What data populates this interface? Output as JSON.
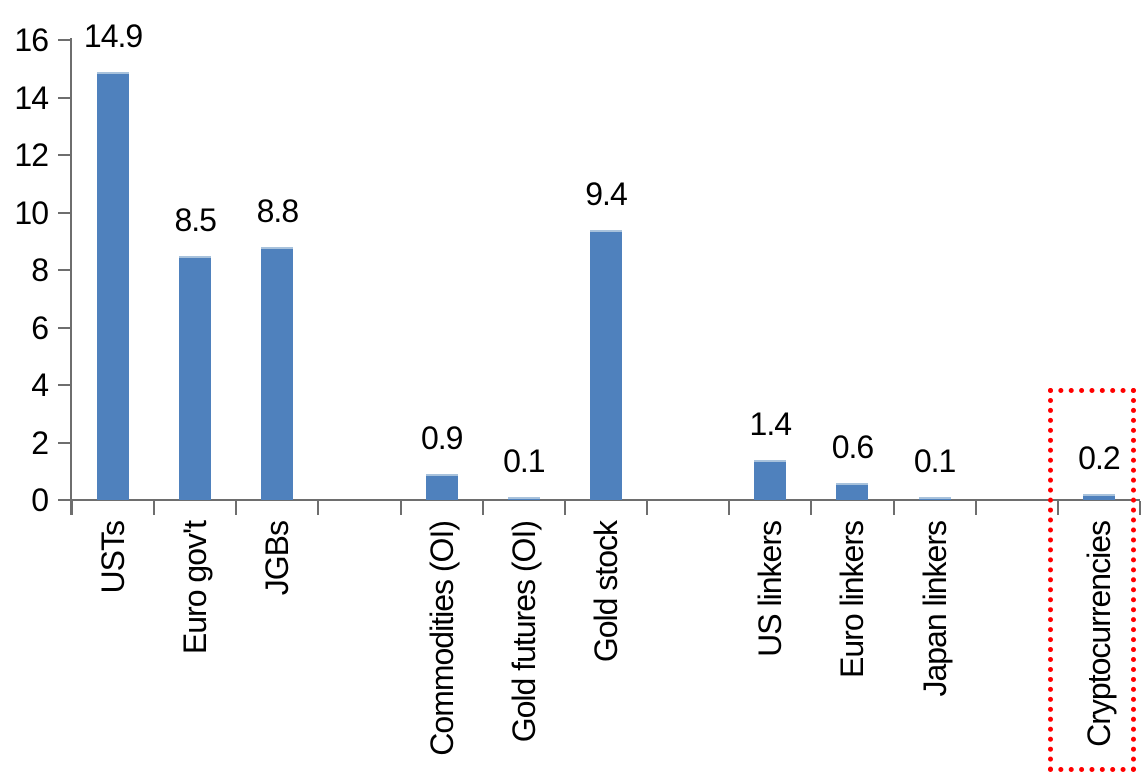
{
  "chart_data": {
    "type": "bar",
    "title": "",
    "categories": [
      "USTs",
      "Euro gov't",
      "JGBs",
      "Commodities (OI)",
      "Gold futures (OI)",
      "Gold stock",
      "US linkers",
      "Euro linkers",
      "Japan linkers",
      "Cryptocurrencies"
    ],
    "values": [
      14.9,
      8.5,
      8.8,
      0.9,
      0.1,
      9.4,
      1.4,
      0.6,
      0.1,
      0.2
    ],
    "value_labels": [
      "14.9",
      "8.5",
      "8.8",
      "0.9",
      "0.1",
      "9.4",
      "1.4",
      "0.6",
      "0.1",
      "0.2"
    ],
    "slot_indices": [
      0,
      1,
      2,
      4,
      5,
      6,
      8,
      9,
      10,
      12
    ],
    "total_slots": 13,
    "xlabel": "",
    "ylabel": "",
    "ylim": [
      0,
      16
    ],
    "yticks": [
      0,
      2,
      4,
      6,
      8,
      10,
      12,
      14,
      16
    ],
    "grid": false,
    "legend": false,
    "category_label_rotation_deg": -90,
    "bar_color": "#4F81BD",
    "axis_color": "#6E6E6E",
    "text_color": "#000000",
    "highlight": {
      "target_category": "Cryptocurrencies",
      "border_color": "#FF0000",
      "border_style": "dotted"
    }
  }
}
